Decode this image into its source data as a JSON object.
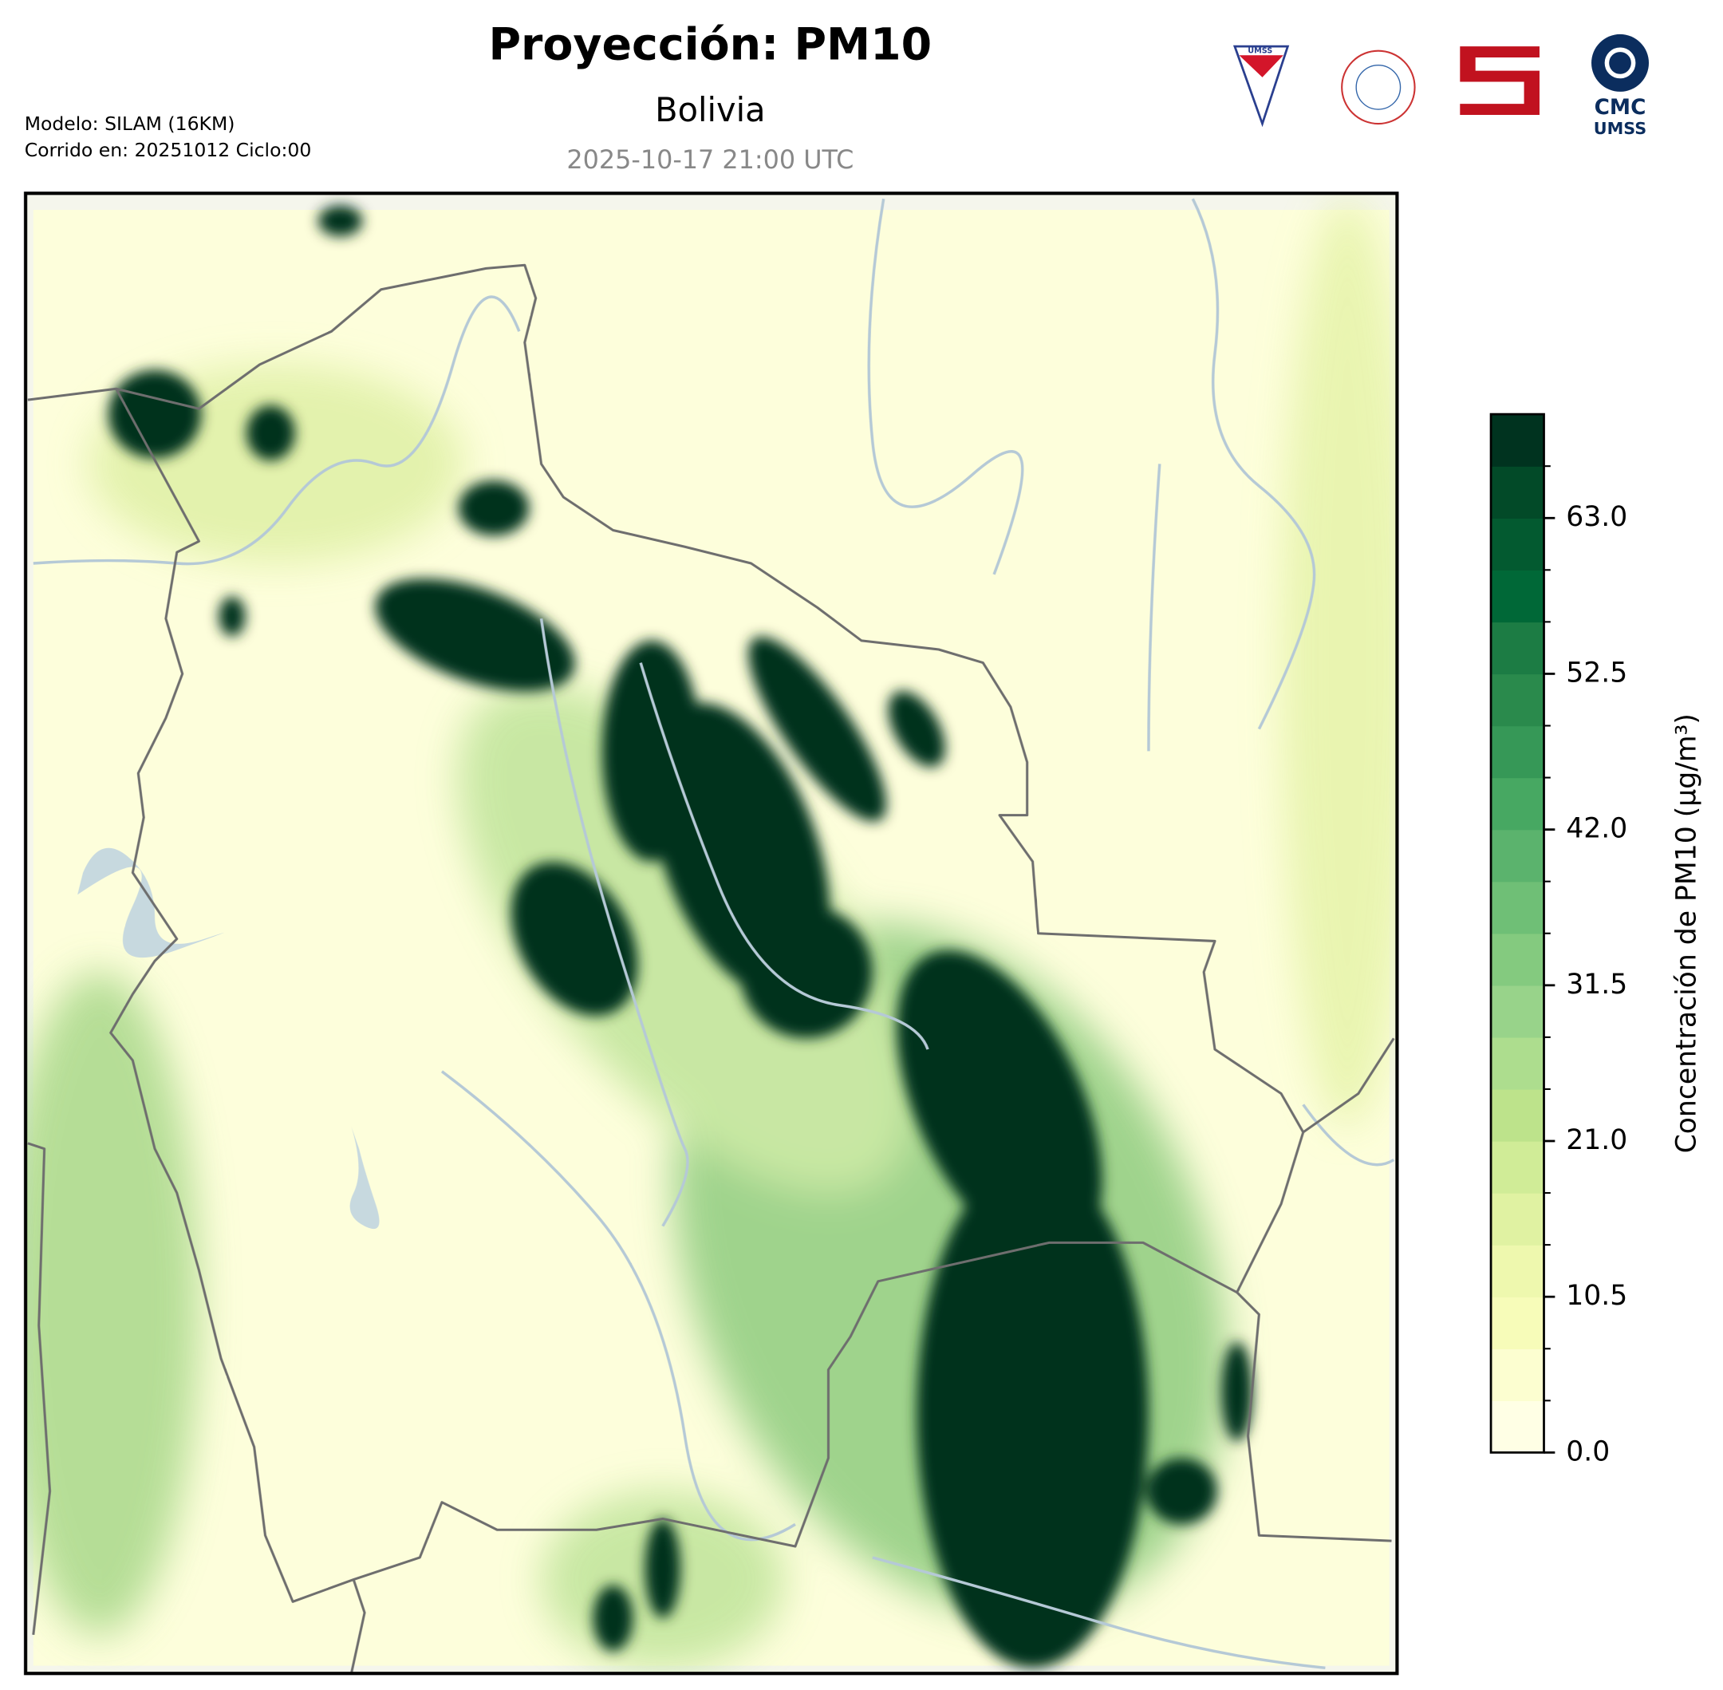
{
  "header": {
    "title": "Proyección: PM10",
    "subtitle": "Bolivia",
    "timestamp": "2025-10-17 21:00 UTC",
    "model": "Modelo: SILAM (16KM)",
    "run": "Corrido en: 20251012 Ciclo:00"
  },
  "logos": {
    "badge": "UMSS",
    "cmc": "CMC",
    "cmc_sub": "UMSS"
  },
  "colorbar": {
    "label": "Concentración de PM10 (µg/m³)",
    "lim": [
      0,
      70
    ],
    "ticks": [
      {
        "value": 0,
        "label": "0.0"
      },
      10.5,
      {
        "value": 21,
        "label": "21.0"
      },
      31.5,
      {
        "value": 42,
        "label": "42.0"
      },
      52.5,
      {
        "value": 63,
        "label": "63.0"
      }
    ],
    "colors": [
      "#ffffe5",
      "#fcfed0",
      "#f7fcb9",
      "#eef8ae",
      "#e0f2a2",
      "#d0ec97",
      "#bde38b",
      "#addd8e",
      "#98d38a",
      "#84ca7f",
      "#6fbf76",
      "#5bb36d",
      "#47a862",
      "#369857",
      "#2a8a4c",
      "#1c7c44",
      "#006837",
      "#035a30",
      "#024a28",
      "#00331f"
    ]
  }
}
